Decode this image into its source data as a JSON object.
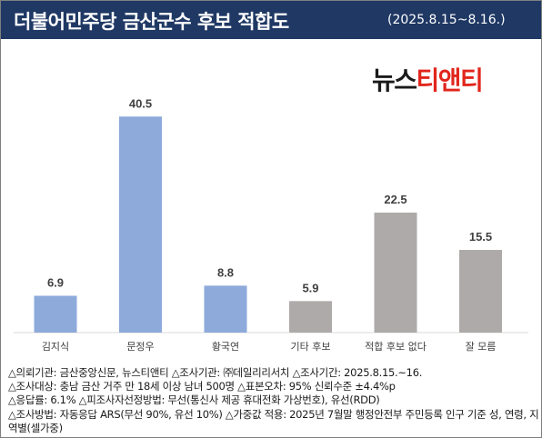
{
  "header": {
    "title": "더불어민주당 금산군수 후보 적합도",
    "period": "(2025.8.15~8.16.)"
  },
  "logo": {
    "part1": "뉴스",
    "part2": "티앤티"
  },
  "colors": {
    "header_bg": "#1f3864",
    "blue_bar": "#8eaadb",
    "gray_bar": "#aeaaaa",
    "logo_red": "#e1261c"
  },
  "chart_data": {
    "type": "bar",
    "categories": [
      "김지식",
      "문정우",
      "황국연",
      "기타 후보",
      "적합 후보 없다",
      "잘 모름"
    ],
    "values": [
      6.9,
      40.5,
      8.8,
      5.9,
      22.5,
      15.5
    ],
    "value_labels": [
      "6.9",
      "40.5",
      "8.8",
      "5.9",
      "22.5",
      "15.5"
    ],
    "bar_colors": [
      "#8eaadb",
      "#8eaadb",
      "#8eaadb",
      "#aeaaaa",
      "#aeaaaa",
      "#aeaaaa"
    ],
    "title": "",
    "xlabel": "",
    "ylabel": "",
    "ylim": [
      0,
      42
    ],
    "grid": false,
    "legend": "none"
  },
  "footer": {
    "line1": "△의뢰기관: 금산중앙신문, 뉴스티앤티 △조사기관: ㈜데일리리서치 △조사기간: 2025.8.15.~16.",
    "line2": "△조사대상: 충남 금산 거주 만 18세 이상 남녀 500명 △표본오차: 95% 신뢰수준 ±4.4%p",
    "line3": "△응답률: 6.1% △피조사자선정방법: 무선(통신사 제공 휴대전화 가상번호), 유선(RDD)",
    "line4": "△조사방법: 자동응답 ARS(무선 90%, 유선 10%) △가중값 적용: 2025년 7월말 행정안전부 주민등록 인구 기준 성, 연령, 지역별(셀가중)"
  }
}
